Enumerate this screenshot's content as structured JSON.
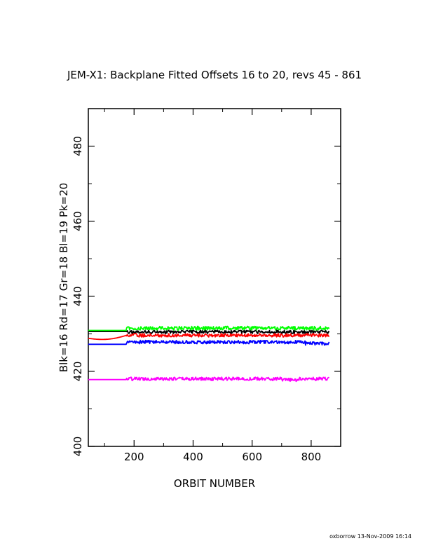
{
  "chart_data": {
    "type": "line",
    "title": "JEM-X1: Backplane Fitted Offsets 16 to 20, revs 45 - 861",
    "xlabel": "ORBIT NUMBER",
    "ylabel": "Blk=16 Rd=17 Gr=18 Bl=19 Pk=20",
    "xlim": [
      45,
      900
    ],
    "ylim": [
      400,
      490
    ],
    "x_ticks": [
      200,
      400,
      600,
      800
    ],
    "y_ticks": [
      400,
      420,
      440,
      460,
      480
    ],
    "x_tick_labels": [
      "200",
      "400",
      "600",
      "800"
    ],
    "y_tick_labels": [
      "400",
      "420",
      "440",
      "460",
      "480"
    ],
    "grid": false,
    "legend": "none",
    "x_start": 45,
    "x_end": 861,
    "data_begins": 175,
    "series": [
      {
        "color": "#000000",
        "level_early": 430.6,
        "level_late": 430.5,
        "noise": 0.45
      },
      {
        "color": "#ff0000",
        "level_early": 428.8,
        "dip": 428.3,
        "level_late": 429.6,
        "noise": 0.45
      },
      {
        "color": "#00ff00",
        "level_early": 430.9,
        "level_late": 431.5,
        "noise": 0.5
      },
      {
        "color": "#0000ff",
        "level_early": 427.2,
        "level_late": 427.8,
        "noise": 0.45
      },
      {
        "color": "#ff00ff",
        "level_early": 417.8,
        "level_late": 418.0,
        "noise": 0.45
      }
    ]
  },
  "footer": "oxborrow 13-Nov-2009 16:14"
}
